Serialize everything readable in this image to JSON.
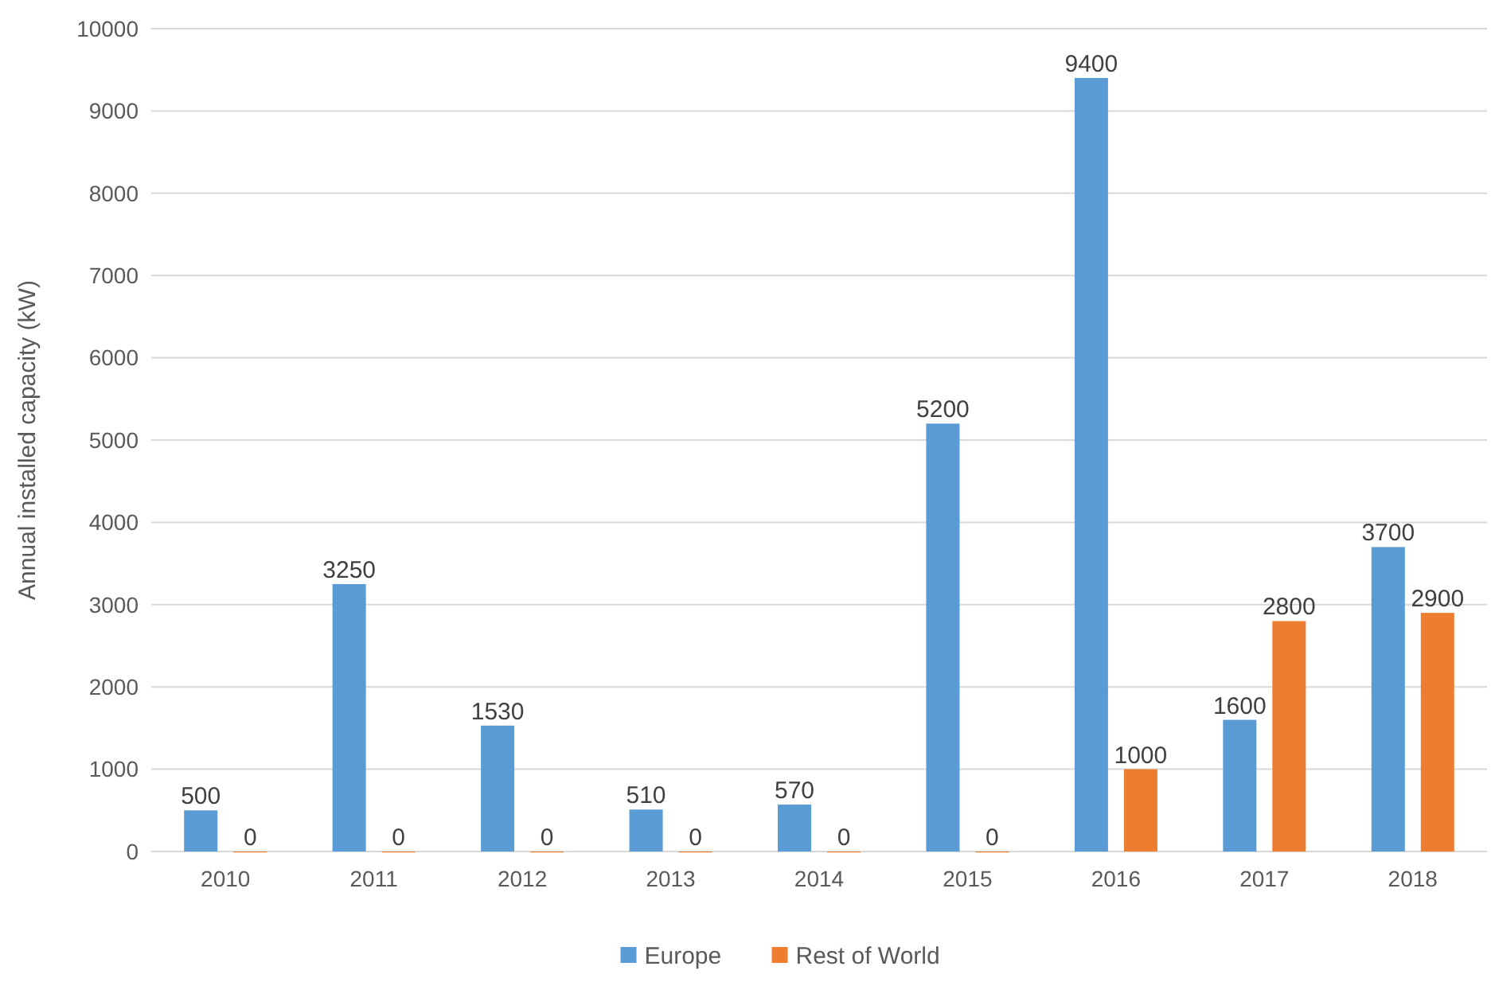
{
  "chart_data": {
    "type": "bar",
    "ylabel": "Annual installed capacity (kW)",
    "categories": [
      "2010",
      "2011",
      "2012",
      "2013",
      "2014",
      "2015",
      "2016",
      "2017",
      "2018"
    ],
    "series": [
      {
        "name": "Europe",
        "color": "#5b9bd5",
        "values": [
          500,
          3250,
          1530,
          510,
          570,
          5200,
          9400,
          1600,
          3700
        ]
      },
      {
        "name": "Rest of World",
        "color": "#ed7d31",
        "values": [
          0,
          0,
          0,
          0,
          0,
          0,
          1000,
          2800,
          2900
        ]
      }
    ],
    "ylim": [
      0,
      10000
    ],
    "yticks": [
      0,
      1000,
      2000,
      3000,
      4000,
      5000,
      6000,
      7000,
      8000,
      9000,
      10000
    ],
    "grid": "y",
    "legend": "bottom",
    "data_labels": true
  }
}
